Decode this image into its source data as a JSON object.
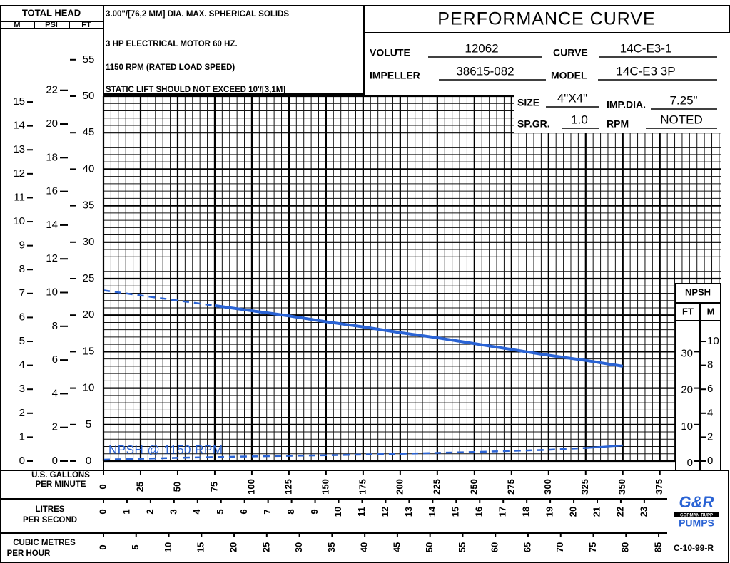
{
  "chart_data": {
    "type": "line",
    "title": "PERFORMANCE CURVE",
    "notes": [
      "3.00\"/[76,2 MM] DIA. MAX. SPHERICAL SOLIDS",
      "3 HP ELECTRICAL MOTOR 60 HZ.",
      "1150 RPM (RATED LOAD SPEED)",
      "STATIC LIFT SHOULD NOT EXCEED 10'/[3,1M]"
    ],
    "fields": [
      {
        "label": "VOLUTE",
        "value": "12062"
      },
      {
        "label": "CURVE",
        "value": "14C-E3-1"
      },
      {
        "label": "IMPELLER",
        "value": "38615-082"
      },
      {
        "label": "MODEL",
        "value": "14C-E3 3P"
      },
      {
        "label": "SIZE",
        "value": "4\"X4\""
      },
      {
        "label": "IMP.DIA.",
        "value": "7.25\""
      },
      {
        "label": "SP.GR.",
        "value": "1.0"
      },
      {
        "label": "RPM",
        "value": "NOTED"
      }
    ],
    "y_axis_title": "TOTAL HEAD",
    "xlabel": [
      "U.S. GALLONS",
      "PER MINUTE"
    ],
    "xlim": [
      0,
      416
    ],
    "xticks": [
      0,
      25,
      50,
      75,
      100,
      125,
      150,
      175,
      200,
      225,
      250,
      275,
      300,
      325,
      350,
      375
    ],
    "x_minor_step": 5,
    "ylabel": "FT",
    "ylim": [
      0,
      50
    ],
    "yticks": [
      0,
      5,
      10,
      15,
      20,
      25,
      30,
      35,
      40,
      45,
      50,
      55
    ],
    "y_minor_step": 1,
    "y_extra": [
      {
        "label": "M",
        "lim": [
          0,
          15.24
        ],
        "ticks": [
          0,
          1,
          2,
          3,
          4,
          5,
          6,
          7,
          8,
          9,
          10,
          11,
          12,
          13,
          14,
          15
        ]
      },
      {
        "label": "PSI",
        "lim": [
          0,
          21.65
        ],
        "ticks": [
          0,
          2,
          4,
          6,
          8,
          10,
          12,
          14,
          16,
          18,
          20,
          22
        ]
      }
    ],
    "x_extra": [
      {
        "label": [
          "LITRES",
          "PER SECOND"
        ],
        "lim": [
          0,
          26.25
        ],
        "ticks": [
          0,
          1,
          2,
          3,
          4,
          5,
          6,
          7,
          8,
          9,
          10,
          11,
          12,
          13,
          14,
          15,
          16,
          17,
          18,
          19,
          20,
          21,
          22,
          23
        ]
      },
      {
        "label": [
          "CUBIC METRES",
          "PER HOUR"
        ],
        "lim": [
          0,
          94.5
        ],
        "ticks": [
          0,
          5,
          10,
          15,
          20,
          25,
          30,
          35,
          40,
          45,
          50,
          55,
          60,
          65,
          70,
          75,
          80,
          85
        ]
      }
    ],
    "y2_title": "NPSH",
    "y2label": "FT",
    "y2lim": [
      0,
      100
    ],
    "y2ticks": [
      0,
      10,
      20,
      30
    ],
    "y2_extra": {
      "label": "M",
      "lim": [
        0,
        30.48
      ],
      "ticks": [
        0,
        2,
        4,
        6,
        8,
        10
      ]
    },
    "series": [
      {
        "color": "#2a63d4",
        "style": "dashed",
        "x": [
          0,
          25,
          50,
          75
        ],
        "values": [
          23.4,
          22.7,
          22.0,
          21.3
        ]
      },
      {
        "color": "#2a63d4",
        "style": "solid",
        "x": [
          75,
          100,
          125,
          150,
          175,
          200,
          225,
          250,
          275,
          300,
          325,
          350
        ],
        "values": [
          21.3,
          20.6,
          19.9,
          19.1,
          18.4,
          17.6,
          16.9,
          16.1,
          15.3,
          14.5,
          13.8,
          13.0
        ]
      },
      {
        "color": "#2a63d4",
        "style": "dashed",
        "axis": "y2",
        "x": [
          0,
          50,
          100,
          150,
          200,
          250,
          300,
          325
        ],
        "values": [
          0.4,
          0.9,
          1.3,
          1.6,
          2.0,
          2.5,
          3.1,
          3.6
        ]
      },
      {
        "color": "#2a63d4",
        "style": "solid",
        "axis": "y2",
        "x": [
          325,
          350
        ],
        "values": [
          3.6,
          4.3
        ]
      }
    ],
    "annotation": "NPSH @ 1150 RPM",
    "logo": [
      "G&R",
      "GORMAN-RUPP",
      "PUMPS"
    ],
    "code": "C-10-99-R"
  }
}
